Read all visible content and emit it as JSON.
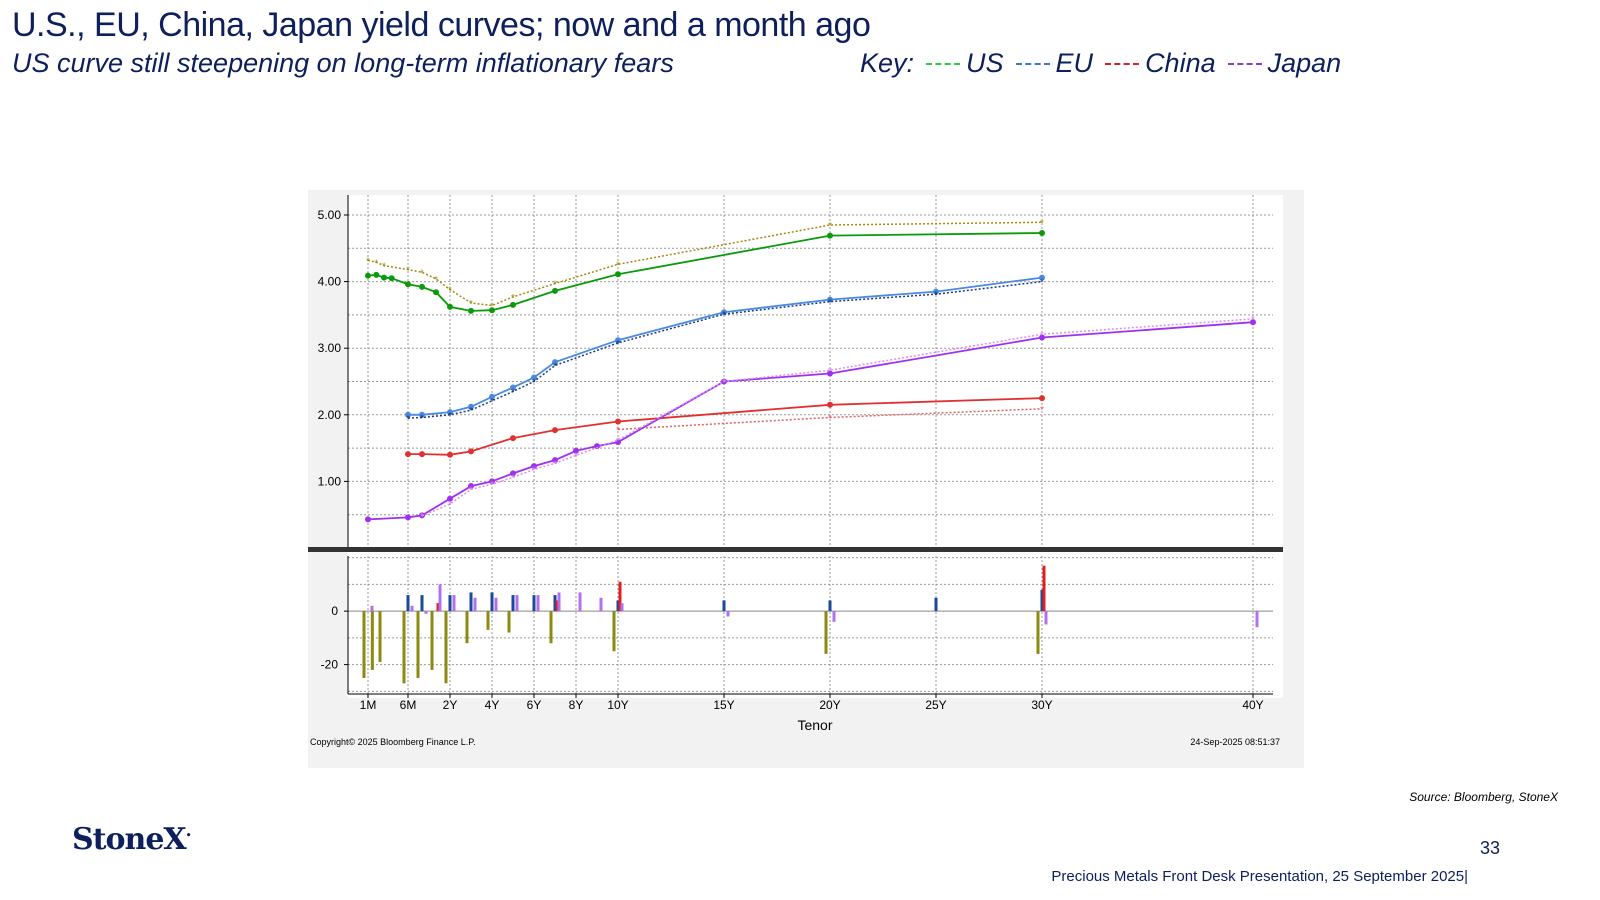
{
  "slide": {
    "title": "U.S., EU, China, Japan yield curves; now and a month ago",
    "subtitle": "US curve still steepening on long-term inflationary fears",
    "key_label": "Key:",
    "key": [
      {
        "label": "US",
        "color": "#2ecc40"
      },
      {
        "label": "EU",
        "color": "#3a78d8"
      },
      {
        "label": "China",
        "color": "#e02020"
      },
      {
        "label": "Japan",
        "color": "#8a3ad8"
      }
    ],
    "source": "Source: Bloomberg, StoneX",
    "logo": "StoneX",
    "page_number": "33",
    "footer": "Precious Metals Front Desk Presentation, 25 September 2025|"
  },
  "chart_meta": {
    "copyright": "Copyright© 2025 Bloomberg Finance L.P.",
    "timestamp": "24-Sep-2025 08:51:37"
  },
  "chart_data": [
    {
      "type": "line",
      "xlabel": "Tenor",
      "ylabel": "",
      "ylim": [
        0.0,
        5.3
      ],
      "y_ticks": [
        "1.00",
        "2.00",
        "3.00",
        "4.00",
        "5.00"
      ],
      "y_tick_values": [
        1,
        2,
        3,
        4,
        5
      ],
      "x_tick_labels": [
        "1M",
        "6M",
        "2Y",
        "4Y",
        "6Y",
        "8Y",
        "10Y",
        "15Y",
        "20Y",
        "25Y",
        "30Y",
        "40Y"
      ],
      "x_tick_values": [
        0.083,
        0.5,
        2,
        4,
        6,
        8,
        10,
        15,
        20,
        25,
        30,
        40
      ],
      "grid": true,
      "series": [
        {
          "color": "#0a9a0a",
          "style": "solid",
          "x": [
            0.083,
            0.17,
            0.25,
            0.33,
            0.5,
            1,
            1.5,
            2,
            3,
            4,
            5,
            7,
            10,
            20,
            30
          ],
          "y": [
            4.09,
            4.1,
            4.06,
            4.05,
            3.96,
            3.92,
            3.84,
            3.62,
            3.56,
            3.57,
            3.65,
            3.86,
            4.11,
            4.69,
            4.73
          ]
        },
        {
          "color": "#a08a10",
          "style": "dotted",
          "x": [
            0.083,
            0.17,
            0.25,
            0.5,
            1,
            1.5,
            2,
            3,
            4,
            5,
            7,
            10,
            20,
            30
          ],
          "y": [
            4.32,
            4.29,
            4.24,
            4.18,
            4.14,
            4.04,
            3.88,
            3.68,
            3.64,
            3.77,
            3.97,
            4.26,
            4.85,
            4.89
          ]
        },
        {
          "color": "#4a8ae0",
          "style": "solid",
          "x": [
            0.5,
            1,
            2,
            3,
            4,
            5,
            6,
            7,
            10,
            15,
            20,
            25,
            30
          ],
          "y": [
            2.0,
            2.0,
            2.04,
            2.12,
            2.27,
            2.41,
            2.56,
            2.79,
            3.12,
            3.54,
            3.73,
            3.85,
            4.06
          ]
        },
        {
          "color": "#1a3a8a",
          "style": "dotted",
          "x": [
            0.5,
            1,
            2,
            3,
            4,
            5,
            6,
            7,
            10,
            15,
            20,
            25,
            30
          ],
          "y": [
            1.95,
            1.96,
            2.0,
            2.07,
            2.21,
            2.35,
            2.5,
            2.74,
            3.08,
            3.51,
            3.7,
            3.81,
            4.0
          ]
        },
        {
          "color": "#e03030",
          "style": "solid",
          "x": [
            0.5,
            1,
            2,
            3,
            5,
            7,
            10,
            20,
            30
          ],
          "y": [
            1.41,
            1.41,
            1.4,
            1.45,
            1.65,
            1.77,
            1.9,
            2.15,
            2.25
          ]
        },
        {
          "color": "#e06060",
          "style": "dotted",
          "x": [
            10,
            20,
            30
          ],
          "y": [
            1.78,
            1.96,
            2.09
          ]
        },
        {
          "color": "#a030f0",
          "style": "solid",
          "x": [
            0.083,
            0.5,
            1,
            2,
            3,
            4,
            5,
            6,
            7,
            8,
            9,
            10,
            15,
            20,
            30,
            40
          ],
          "y": [
            0.43,
            0.46,
            0.49,
            0.74,
            0.93,
            1.0,
            1.12,
            1.23,
            1.32,
            1.46,
            1.53,
            1.59,
            2.5,
            2.62,
            3.16,
            3.39
          ]
        },
        {
          "color": "#d890f0",
          "style": "dotted",
          "x": [
            1,
            2,
            3,
            4,
            5,
            6,
            7,
            8,
            10,
            15,
            20,
            30,
            40
          ],
          "y": [
            0.48,
            0.66,
            0.88,
            0.96,
            1.06,
            1.18,
            1.27,
            1.39,
            1.62,
            2.5,
            2.67,
            3.21,
            3.44
          ]
        }
      ]
    },
    {
      "type": "bar",
      "ylim": [
        -31,
        21
      ],
      "y_ticks": [
        "0",
        "-20"
      ],
      "y_tick_values": [
        0,
        -20
      ],
      "series": [
        {
          "color": "#8c8a10",
          "x": [
            0.083,
            0.17,
            0.25,
            0.5,
            1,
            1.5,
            2,
            3,
            4,
            5,
            7,
            10,
            20,
            30
          ],
          "values": [
            -25,
            -22,
            -19,
            -27,
            -25,
            -22,
            -27,
            -12,
            -7,
            -8,
            -12,
            -15,
            -16,
            -16
          ]
        },
        {
          "color": "#1a4a9a",
          "x": [
            0.5,
            1,
            2,
            3,
            4,
            5,
            6,
            7,
            10,
            15,
            20,
            25,
            30
          ],
          "values": [
            6,
            6,
            6,
            7,
            7,
            6,
            6,
            6,
            4,
            4,
            4,
            5,
            8
          ]
        },
        {
          "color": "#e02020",
          "x": [
            1.5,
            7,
            10,
            30
          ],
          "values": [
            3,
            4,
            11,
            17
          ]
        },
        {
          "color": "#b070f0",
          "x": [
            0.083,
            0.5,
            1,
            1.5,
            2,
            3,
            4,
            5,
            6,
            7,
            8,
            9,
            10,
            15,
            20,
            30,
            40
          ],
          "values": [
            2,
            2,
            -1,
            10,
            6,
            5,
            5,
            6,
            6,
            7,
            7,
            5,
            3,
            -2,
            -4,
            -5,
            -6
          ]
        }
      ]
    }
  ]
}
